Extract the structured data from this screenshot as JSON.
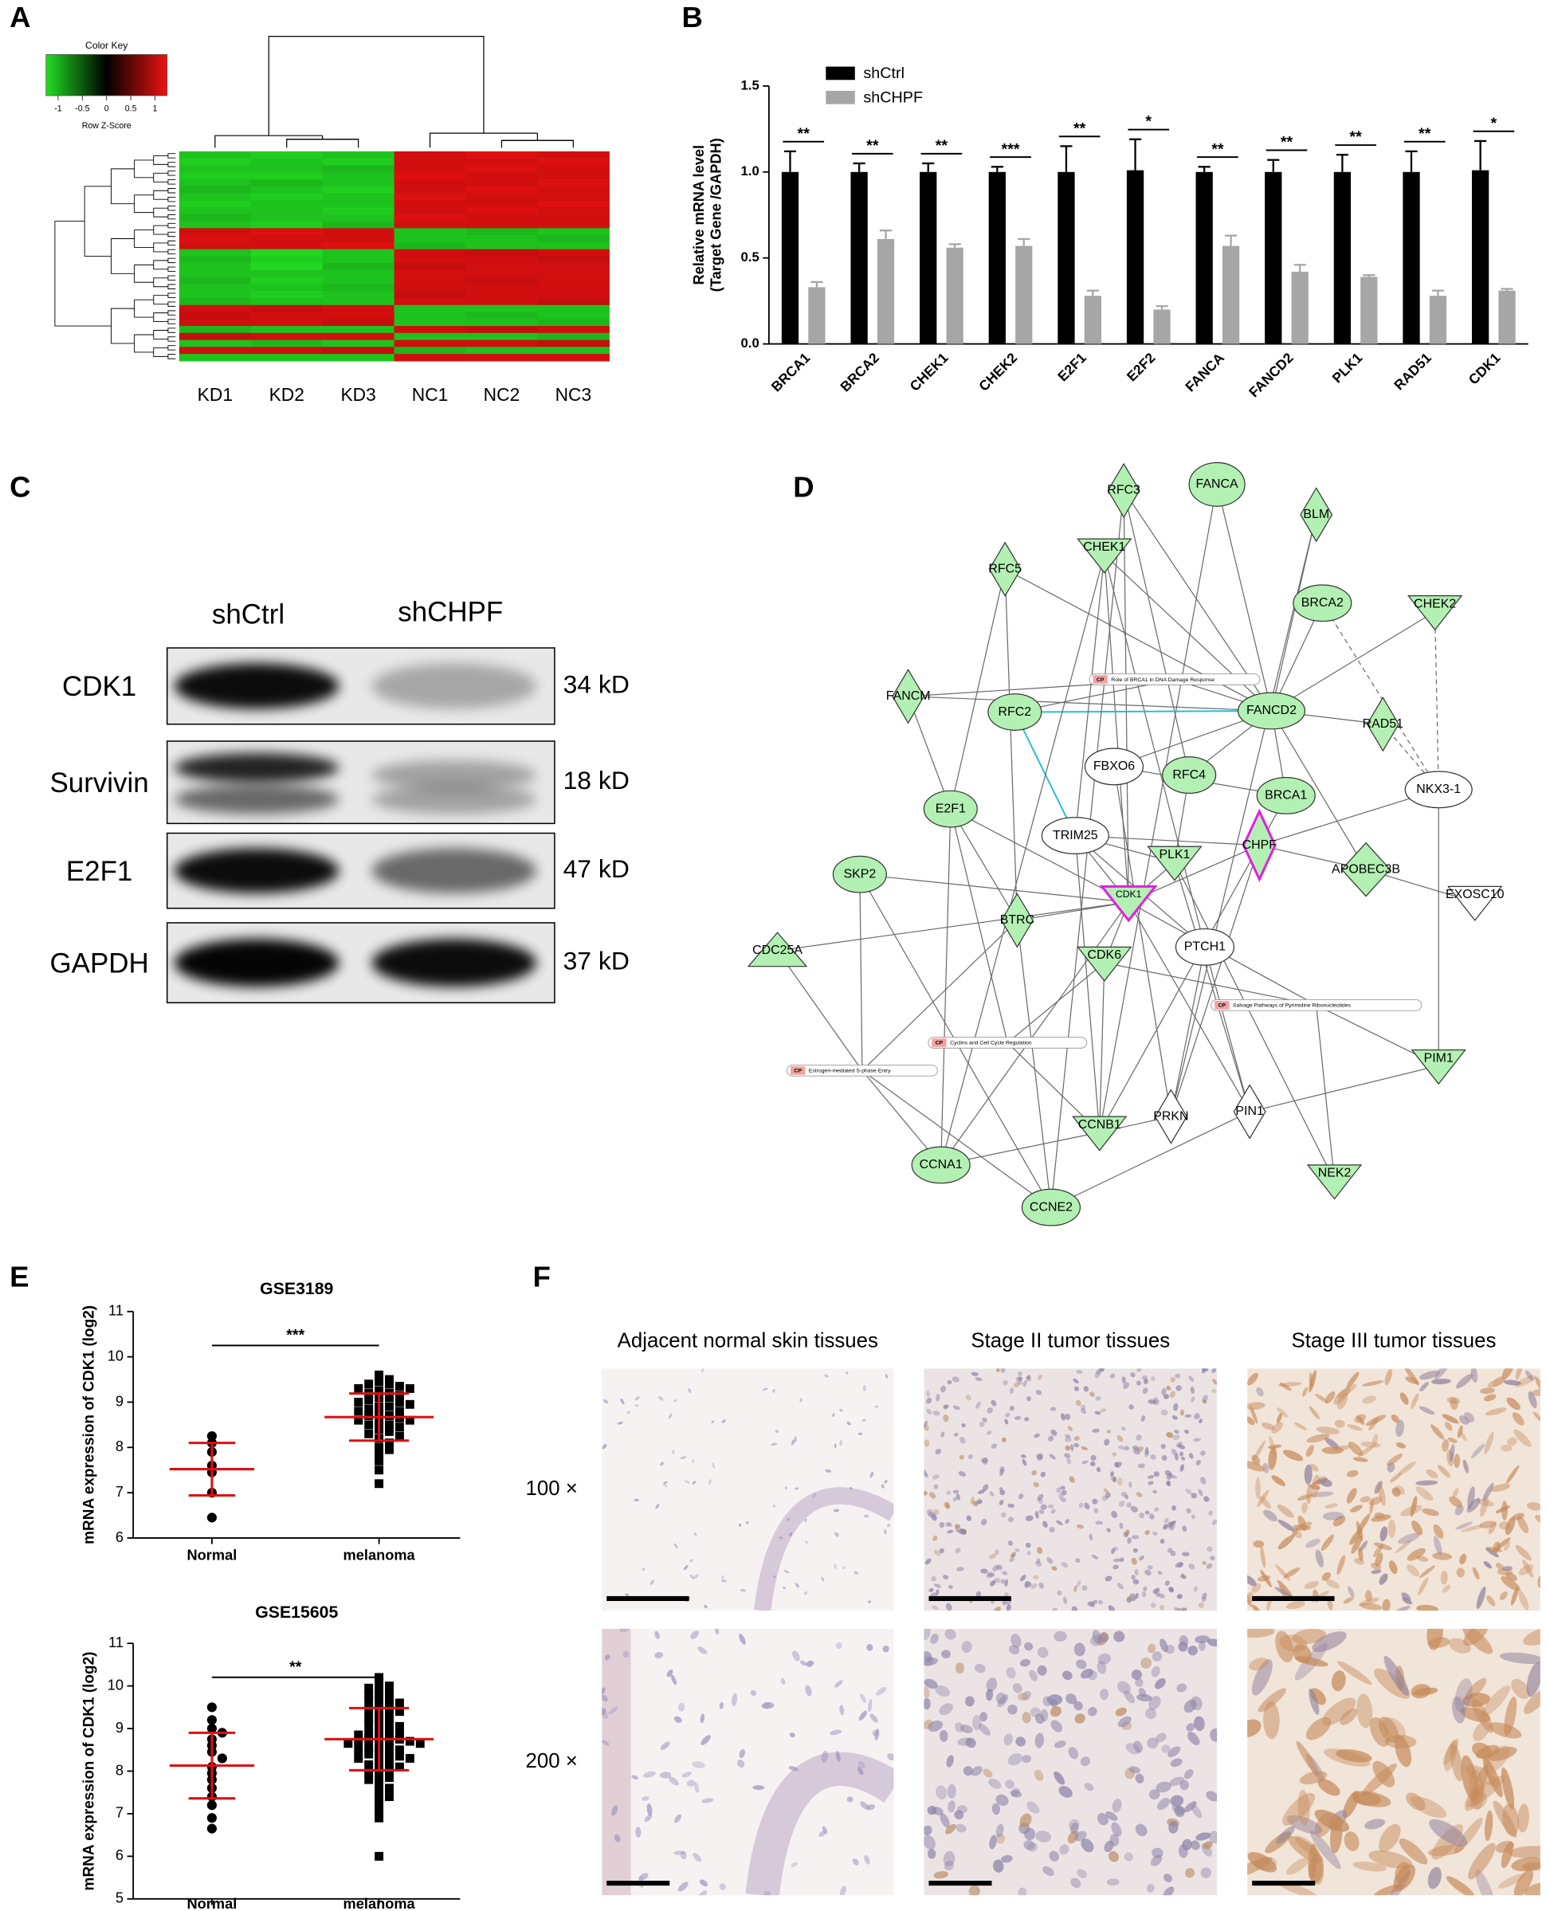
{
  "panel_labels": [
    "A",
    "B",
    "C",
    "D",
    "E",
    "F"
  ],
  "heatmap": {
    "color_key": {
      "title": "Color Key",
      "axis_label": "Row Z-Score",
      "ticks": [
        -1,
        -0.5,
        0,
        0.5,
        1
      ],
      "colors": [
        "#22dd22",
        "#000000",
        "#ee1111"
      ]
    },
    "columns": [
      "KD1",
      "KD2",
      "KD3",
      "NC1",
      "NC2",
      "NC3"
    ],
    "rows": [
      [
        -0.9,
        -0.95,
        -0.9,
        0.9,
        0.95,
        0.9
      ],
      [
        -0.95,
        -0.9,
        -0.95,
        0.9,
        0.9,
        0.95
      ],
      [
        -0.9,
        -0.9,
        -0.85,
        0.9,
        0.95,
        0.9
      ],
      [
        -0.95,
        -0.95,
        -0.9,
        0.95,
        0.9,
        0.9
      ],
      [
        -0.9,
        -0.85,
        -0.9,
        0.9,
        0.9,
        0.95
      ],
      [
        -0.85,
        -0.9,
        -0.95,
        0.9,
        0.95,
        0.9
      ],
      [
        -0.9,
        -0.95,
        -0.9,
        0.95,
        0.9,
        0.9
      ],
      [
        -0.95,
        -0.9,
        -0.9,
        0.9,
        0.9,
        0.95
      ],
      [
        -0.9,
        -0.9,
        -0.95,
        0.9,
        0.95,
        0.9
      ],
      [
        -0.85,
        -0.9,
        -0.9,
        0.95,
        0.9,
        0.9
      ],
      [
        -0.9,
        -0.95,
        -0.85,
        0.9,
        0.9,
        0.9
      ],
      [
        0.9,
        0.95,
        0.9,
        -0.9,
        -0.85,
        -0.9
      ],
      [
        0.95,
        0.9,
        0.9,
        -0.9,
        -0.9,
        -0.85
      ],
      [
        0.9,
        0.9,
        0.95,
        -0.85,
        -0.9,
        -0.9
      ],
      [
        -0.9,
        -1.0,
        -0.9,
        0.9,
        0.85,
        0.9
      ],
      [
        -0.85,
        -0.95,
        -0.9,
        0.9,
        0.9,
        0.85
      ],
      [
        -0.9,
        -1.0,
        -0.85,
        0.85,
        0.9,
        0.9
      ],
      [
        -0.9,
        -0.9,
        -0.9,
        0.9,
        0.9,
        0.9
      ],
      [
        -0.85,
        -0.95,
        -0.9,
        0.9,
        0.85,
        0.9
      ],
      [
        -0.9,
        -0.9,
        -0.85,
        0.9,
        0.9,
        0.9
      ],
      [
        -0.9,
        -0.95,
        -0.9,
        0.85,
        0.9,
        0.9
      ],
      [
        -0.85,
        -0.9,
        -0.9,
        0.9,
        0.9,
        0.85
      ],
      [
        0.9,
        0.85,
        0.9,
        -0.9,
        -0.9,
        -0.9
      ],
      [
        0.85,
        0.9,
        0.9,
        -0.9,
        -0.85,
        -0.9
      ],
      [
        0.9,
        0.9,
        0.85,
        -0.9,
        -0.9,
        -0.85
      ],
      [
        -0.85,
        -0.9,
        -0.9,
        0.9,
        0.85,
        0.9
      ],
      [
        0.85,
        0.9,
        0.9,
        -0.9,
        -0.9,
        -0.85
      ],
      [
        -0.9,
        -0.85,
        -0.9,
        0.9,
        0.9,
        0.85
      ],
      [
        0.9,
        0.9,
        0.85,
        -0.85,
        -0.9,
        -0.9
      ],
      [
        -0.9,
        -0.9,
        -0.9,
        0.9,
        0.9,
        0.9
      ]
    ]
  },
  "chart_data": [
    {
      "type": "bar",
      "ylabel": [
        "Relative mRNA level",
        "(Target Gene /GAPDH)"
      ],
      "categories": [
        "BRCA1",
        "BRCA2",
        "CHEK1",
        "CHEK2",
        "E2F1",
        "E2F2",
        "FANCA",
        "FANCD2",
        "PLK1",
        "RAD51",
        "CDK1"
      ],
      "series": [
        {
          "name": "shCtrl",
          "color": "#000000",
          "values": [
            1.0,
            1.0,
            1.0,
            1.0,
            1.0,
            1.01,
            1.0,
            1.0,
            1.0,
            1.0,
            1.01
          ],
          "errors": [
            0.12,
            0.05,
            0.05,
            0.03,
            0.15,
            0.18,
            0.03,
            0.07,
            0.1,
            0.12,
            0.17
          ]
        },
        {
          "name": "shCHPF",
          "color": "#a6a6a6",
          "values": [
            0.33,
            0.61,
            0.56,
            0.57,
            0.28,
            0.2,
            0.57,
            0.42,
            0.39,
            0.28,
            0.31
          ],
          "errors": [
            0.03,
            0.05,
            0.02,
            0.04,
            0.03,
            0.02,
            0.06,
            0.04,
            0.01,
            0.03,
            0.01
          ]
        }
      ],
      "significance": [
        "**",
        "**",
        "**",
        "***",
        "**",
        "*",
        "**",
        "**",
        "**",
        "**",
        "*"
      ],
      "ylim": [
        0,
        1.5
      ],
      "yticks": [
        {
          "value": 0,
          "label": "0.0"
        },
        0.5,
        {
          "value": 1,
          "label": "1.0"
        },
        1.5
      ]
    },
    {
      "type": "scatter",
      "title": "GSE3189",
      "ylabel": "mRNA expression of CDK1 (log2)",
      "categories": [
        "Normal",
        "melanoma"
      ],
      "groups": [
        {
          "values": [
            8.25,
            8.1,
            7.9,
            7.6,
            7.45,
            7.0,
            6.45
          ],
          "mean": 7.52,
          "sd": 0.58
        },
        {
          "values": [
            9.6,
            9.5,
            9.45,
            9.4,
            9.4,
            9.35,
            9.3,
            9.3,
            9.25,
            9.2,
            9.2,
            9.15,
            9.1,
            9.1,
            9.05,
            9.0,
            9.0,
            8.95,
            8.9,
            8.9,
            8.85,
            8.8,
            8.8,
            8.75,
            8.7,
            8.7,
            8.65,
            8.6,
            8.6,
            8.55,
            8.5,
            8.5,
            8.45,
            8.4,
            8.35,
            8.3,
            8.25,
            8.2,
            8.1,
            8.0,
            7.95,
            7.85,
            7.7,
            7.5,
            7.2
          ],
          "mean": 8.67,
          "sd": 0.52
        }
      ],
      "significance": "***",
      "color": "#000000",
      "summary_color": "#e01010",
      "ylim": [
        6,
        11
      ],
      "yticks": [
        6,
        7,
        8,
        9,
        10,
        11
      ]
    },
    {
      "type": "scatter",
      "title": "GSE15605",
      "ylabel": "mRNA expression of CDK1 (log2)",
      "categories": [
        "Normal",
        "melanoma"
      ],
      "groups": [
        {
          "values": [
            9.5,
            9.2,
            9.0,
            8.9,
            8.75,
            8.6,
            8.45,
            8.3,
            8.1,
            7.95,
            7.8,
            7.6,
            7.4,
            7.2,
            6.9,
            6.65
          ],
          "mean": 8.13,
          "sd": 0.77
        },
        {
          "values": [
            10.2,
            10.1,
            10.0,
            9.95,
            9.9,
            9.85,
            9.8,
            9.75,
            9.7,
            9.65,
            9.6,
            9.55,
            9.5,
            9.45,
            9.4,
            9.35,
            9.3,
            9.25,
            9.2,
            9.15,
            9.1,
            9.05,
            9.0,
            8.95,
            8.9,
            8.9,
            8.85,
            8.8,
            8.8,
            8.75,
            8.75,
            8.7,
            8.7,
            8.65,
            8.65,
            8.6,
            8.6,
            8.55,
            8.5,
            8.5,
            8.45,
            8.4,
            8.4,
            8.35,
            8.3,
            8.3,
            8.25,
            8.2,
            8.15,
            8.1,
            8.05,
            8.0,
            7.95,
            7.9,
            7.85,
            7.8,
            7.7,
            7.6,
            7.5,
            7.4,
            7.3,
            7.1,
            6.9,
            6.0
          ],
          "mean": 8.75,
          "sd": 0.73
        }
      ],
      "significance": "**",
      "color": "#000000",
      "summary_color": "#e01010",
      "ylim": [
        5,
        11
      ],
      "yticks": [
        5,
        6,
        7,
        8,
        9,
        10,
        11
      ]
    }
  ],
  "western_blot": {
    "lanes": [
      "shCtrl",
      "shCHPF"
    ],
    "rows": [
      {
        "protein": "CDK1",
        "size": "34 kD"
      },
      {
        "protein": "Survivin",
        "size": "18 kD"
      },
      {
        "protein": "E2F1",
        "size": "47 kD"
      },
      {
        "protein": "GAPDH",
        "size": "37 kD"
      }
    ]
  },
  "network": {
    "nodes": [
      {
        "label": "RFC3",
        "shape": "diamond",
        "fill": "#b3f0b3"
      },
      {
        "label": "FANCA",
        "shape": "ellipse",
        "fill": "#b3f0b3"
      },
      {
        "label": "BLM",
        "shape": "diamond",
        "fill": "#b3f0b3"
      },
      {
        "label": "CHEK1",
        "shape": "triangle-down",
        "fill": "#b3f0b3"
      },
      {
        "label": "RFC5",
        "shape": "diamond",
        "fill": "#b3f0b3"
      },
      {
        "label": "BRCA2",
        "shape": "ellipse",
        "fill": "#b3f0b3"
      },
      {
        "label": "CHEK2",
        "shape": "triangle-down",
        "fill": "#b3f0b3"
      },
      {
        "label": "FANCM",
        "shape": "diamond",
        "fill": "#b3f0b3"
      },
      {
        "label": "RFC2",
        "shape": "ellipse",
        "fill": "#b3f0b3"
      },
      {
        "label": "FANCD2",
        "shape": "ellipse",
        "fill": "#b3f0b3"
      },
      {
        "label": "RAD51",
        "shape": "diamond",
        "fill": "#b3f0b3"
      },
      {
        "label": "FBXO6",
        "shape": "ellipse",
        "fill": "#ffffff"
      },
      {
        "label": "RFC4",
        "shape": "ellipse",
        "fill": "#b3f0b3"
      },
      {
        "label": "BRCA1",
        "shape": "ellipse",
        "fill": "#b3f0b3"
      },
      {
        "label": "NKX3-1",
        "shape": "ellipse",
        "fill": "#ffffff"
      },
      {
        "label": "E2F1",
        "shape": "ellipse",
        "fill": "#b3f0b3"
      },
      {
        "label": "TRIM25",
        "shape": "ellipse",
        "fill": "#ffffff"
      },
      {
        "label": "CHPF",
        "shape": "diamond",
        "fill": "#b3f0b3",
        "outline": "#e020e0"
      },
      {
        "label": "PLK1",
        "shape": "triangle-down",
        "fill": "#b3f0b3"
      },
      {
        "label": "SKP2",
        "shape": "ellipse",
        "fill": "#b3f0b3"
      },
      {
        "label": "APOBEC3B",
        "shape": "diamond",
        "fill": "#b3f0b3"
      },
      {
        "label": "EXOSC10",
        "shape": "triangle-down",
        "fill": "#ffffff"
      },
      {
        "label": "CDK1",
        "shape": "triangle-down",
        "fill": "#b3f0b3",
        "outline": "#e020e0"
      },
      {
        "label": "BTRC",
        "shape": "diamond",
        "fill": "#b3f0b3"
      },
      {
        "label": "PTCH1",
        "shape": "ellipse",
        "fill": "#ffffff"
      },
      {
        "label": "CDC25A",
        "shape": "triangle-up",
        "fill": "#b3f0b3"
      },
      {
        "label": "CDK6",
        "shape": "triangle-down",
        "fill": "#b3f0b3"
      },
      {
        "label": "PIM1",
        "shape": "triangle-down",
        "fill": "#b3f0b3"
      },
      {
        "label": "PRKN",
        "shape": "diamond",
        "fill": "#ffffff"
      },
      {
        "label": "PIN1",
        "shape": "diamond",
        "fill": "#ffffff"
      },
      {
        "label": "CCNB1",
        "shape": "triangle-down",
        "fill": "#b3f0b3"
      },
      {
        "label": "CCNA1",
        "shape": "ellipse",
        "fill": "#b3f0b3"
      },
      {
        "label": "NEK2",
        "shape": "triangle-down",
        "fill": "#b3f0b3"
      },
      {
        "label": "CCNE2",
        "shape": "ellipse",
        "fill": "#b3f0b3"
      }
    ],
    "pathways": [
      {
        "tag": "CP",
        "label": "Role of BRCA1 in DNA Damage Response"
      },
      {
        "tag": "CP",
        "label": "Salvage Pathways of Pyrimidine Ribonucleotides"
      },
      {
        "tag": "CP",
        "label": "Cyclins and Cell Cycle Regulation"
      },
      {
        "tag": "CP",
        "label": "Estrogen-mediated S-phase Entry"
      }
    ]
  },
  "ihc": {
    "columns": [
      "Adjacent normal skin tissues",
      "Stage II tumor tissues",
      "Stage III tumor tissues"
    ],
    "rows": [
      "100 ×",
      "200 ×"
    ]
  }
}
